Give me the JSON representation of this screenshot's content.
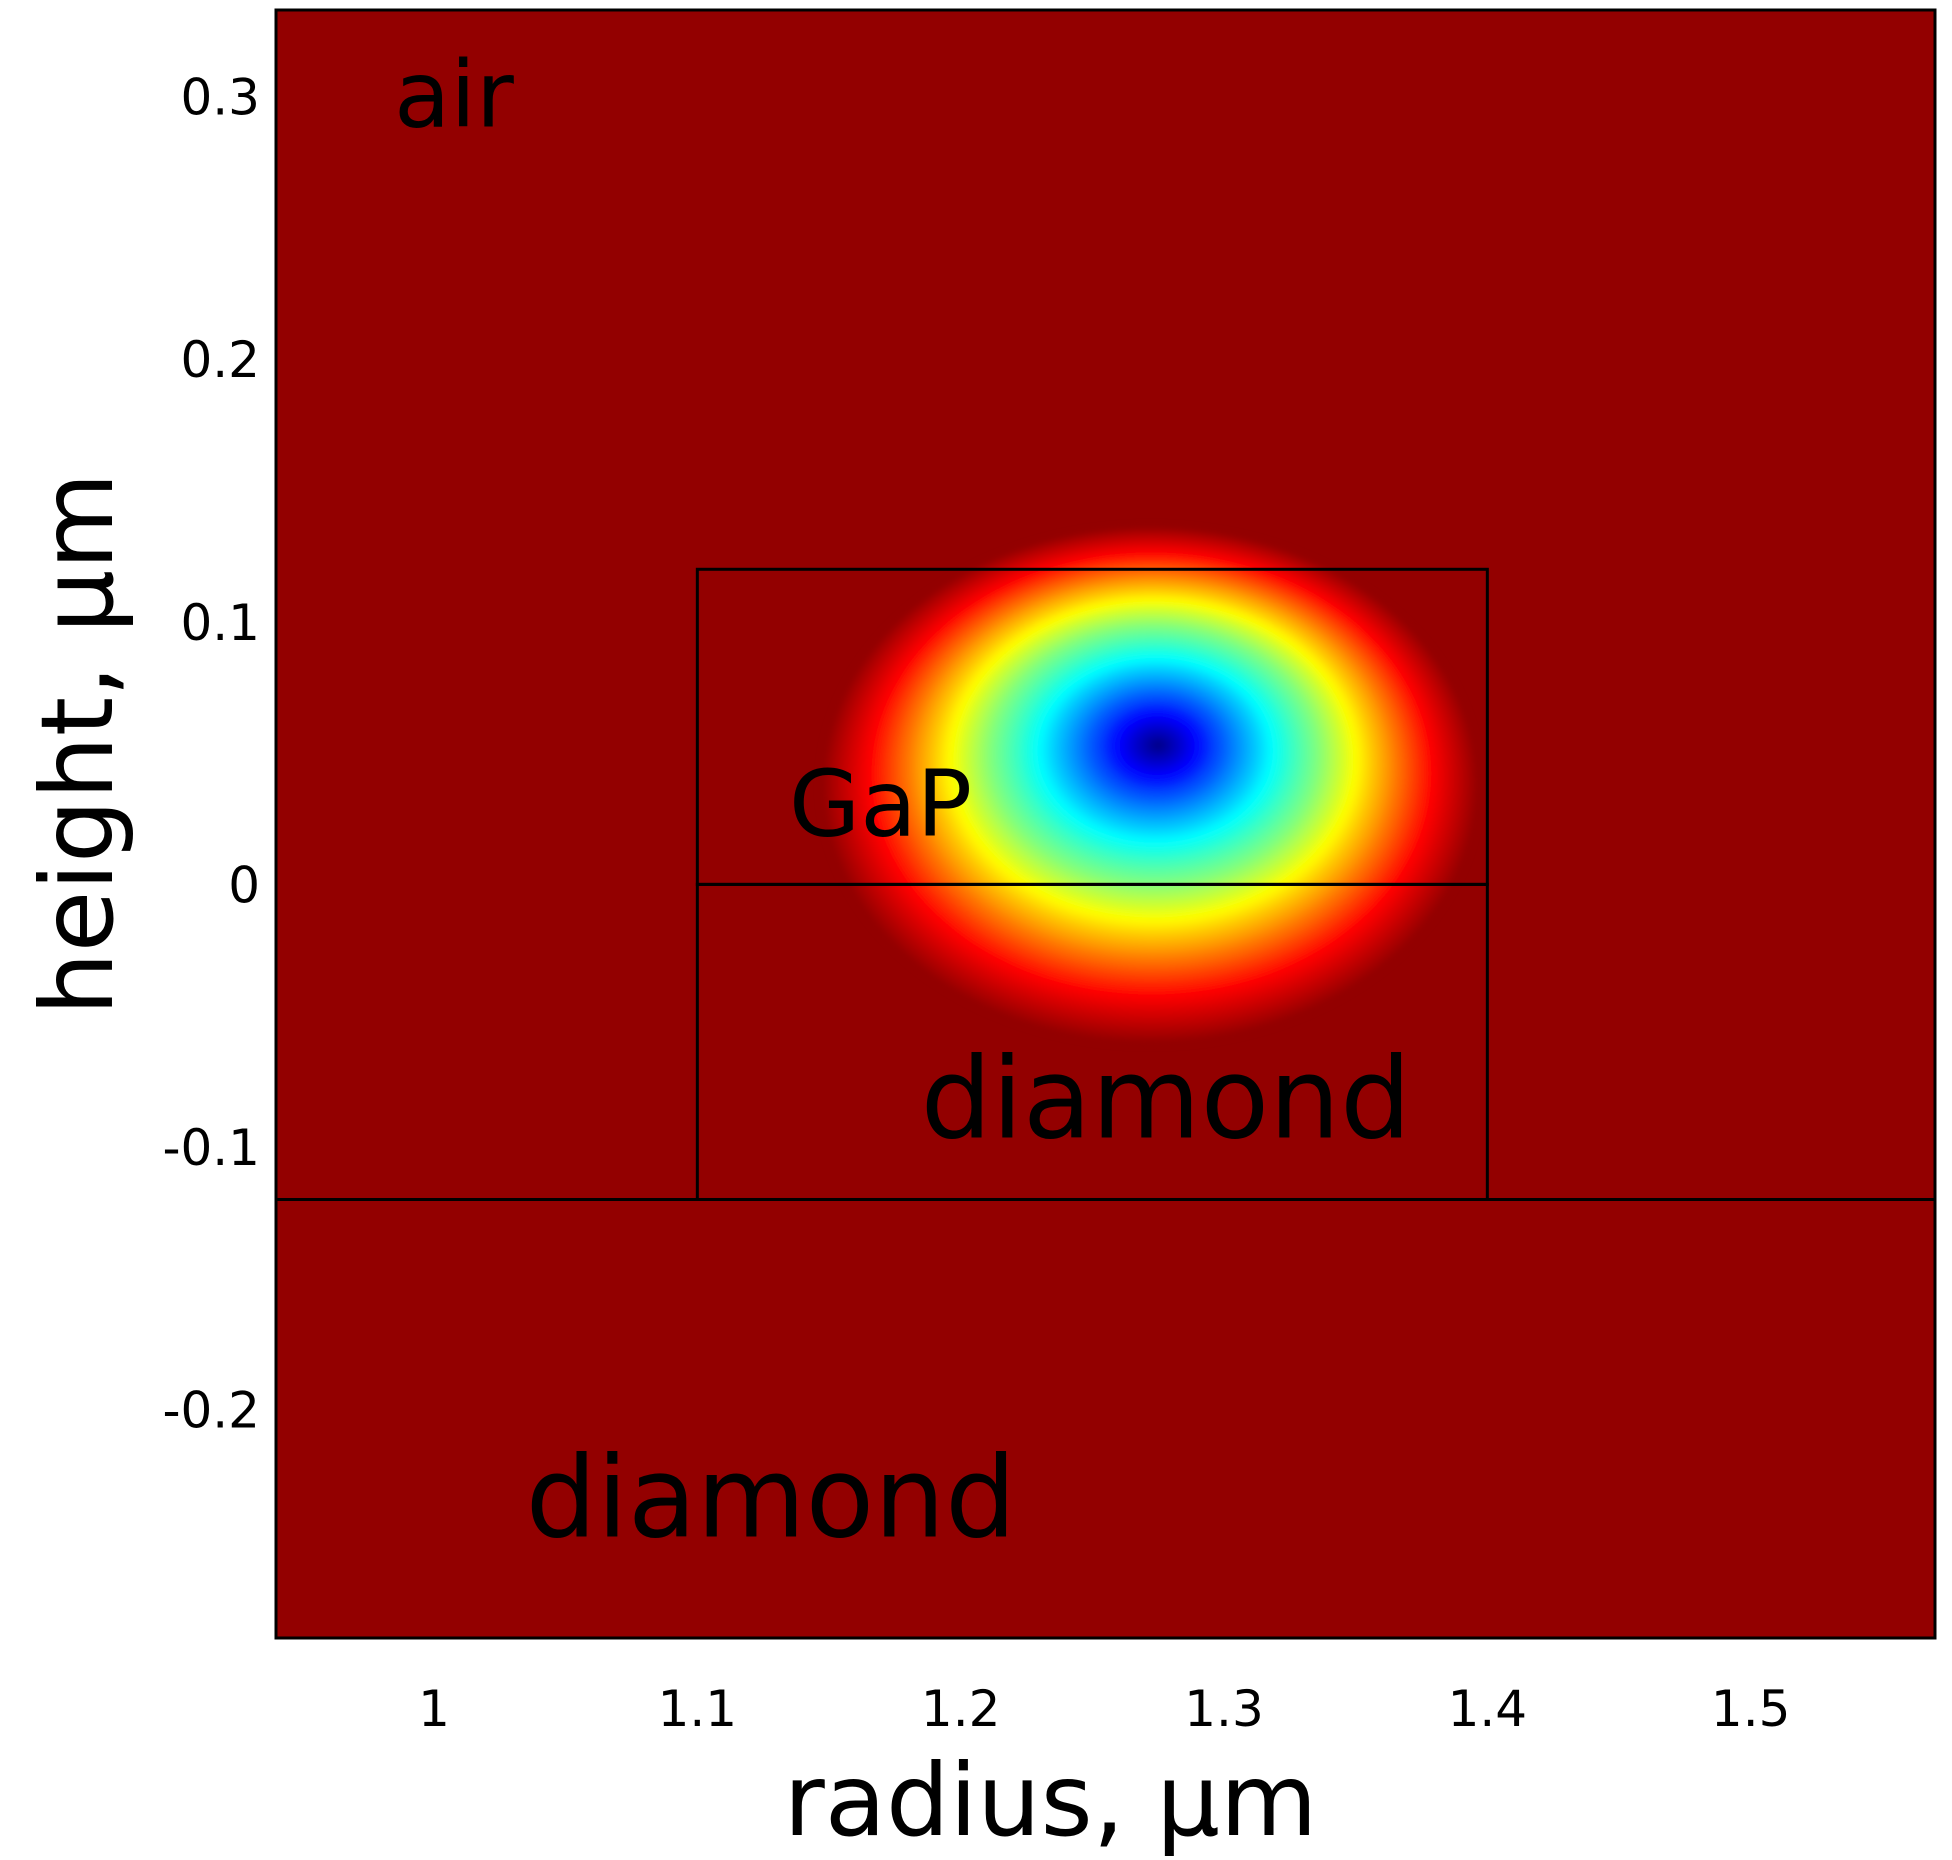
{
  "chart_data": {
    "type": "heatmap",
    "title": "",
    "xlabel": "radius, μm",
    "ylabel": "height, μm",
    "xlim": [
      0.94,
      1.57
    ],
    "ylim": [
      -0.287,
      0.333
    ],
    "x_ticks": [
      {
        "value": 1.0,
        "label": "1"
      },
      {
        "value": 1.1,
        "label": "1.1"
      },
      {
        "value": 1.2,
        "label": "1.2"
      },
      {
        "value": 1.3,
        "label": "1.3"
      },
      {
        "value": 1.4,
        "label": "1.4"
      },
      {
        "value": 1.5,
        "label": "1.5"
      }
    ],
    "y_ticks": [
      {
        "value": 0.3,
        "label": "0.3"
      },
      {
        "value": 0.2,
        "label": "0.2"
      },
      {
        "value": 0.1,
        "label": "0.1"
      },
      {
        "value": 0.0,
        "label": "0"
      },
      {
        "value": -0.1,
        "label": "-0.1"
      },
      {
        "value": -0.2,
        "label": "-0.2"
      }
    ],
    "grid": false,
    "colormap": "jet",
    "background_color": "#930000",
    "field_peak": {
      "r": 1.275,
      "z": 0.053
    },
    "regions": [
      {
        "label": "air",
        "label_pos": {
          "r": 1.0,
          "z": 0.3
        },
        "label_size": "medium"
      },
      {
        "label": "GaP",
        "r_range": [
          1.1,
          1.4
        ],
        "z_range": [
          0.0,
          0.12
        ],
        "label_pos": {
          "r": 1.15,
          "z": 0.03
        },
        "label_size": "medium"
      },
      {
        "label": "diamond",
        "r_range": [
          1.1,
          1.4
        ],
        "z_range": [
          -0.12,
          0.0
        ],
        "label_pos": {
          "r": 1.2,
          "z": -0.085
        },
        "label_size": "large"
      },
      {
        "label": "diamond",
        "r_range": [
          0.94,
          1.57
        ],
        "z_range": [
          -0.287,
          -0.12
        ],
        "label_pos": {
          "r": 1.05,
          "z": -0.237
        },
        "label_size": "large"
      }
    ]
  }
}
